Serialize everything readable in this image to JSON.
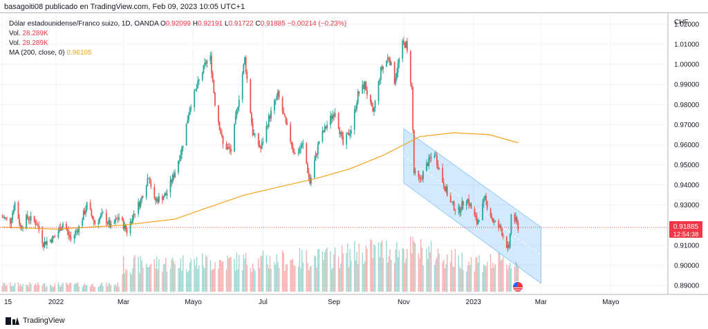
{
  "header": {
    "text": "basagoiti08 publicado en TradingView.com, Feb 09, 2023 10:05 UTC+1"
  },
  "legend": {
    "title": "Dólar estadounidense/Franco suizo, 1D, OANDA",
    "o_label": "O",
    "o": "0.92099",
    "h_label": "H",
    "h": "0.92191",
    "l_label": "L",
    "l": "0.91722",
    "c_label": "C",
    "c": "0.91885",
    "chg": "−0.00214 (−0.23%)",
    "vol1_label": "Vol.",
    "vol1": "28.289K",
    "vol2_label": "Vol.",
    "vol2": "28.289K",
    "ma_label": "MA (200, close, 0)",
    "ma": "0.96105"
  },
  "price_axis": {
    "currency": "CHF"
  },
  "price_tag": {
    "price": "0.91885",
    "countdown": "12:54:38"
  },
  "footer": {
    "brand": "TradingView"
  },
  "colors": {
    "up": "#26a69a",
    "down": "#ef5350",
    "ma": "#f7a21b",
    "channel": "#90caf9",
    "grid": "#f0f3fa"
  },
  "chart_data": {
    "type": "candlestick",
    "symbol": "USDCHF",
    "interval": "1D",
    "ylim": [
      0.8855,
      1.0255
    ],
    "y_ticks": [
      0.89,
      0.9,
      0.91,
      0.93,
      0.94,
      0.95,
      0.96,
      0.97,
      0.98,
      0.99,
      1.0,
      1.01,
      1.02
    ],
    "x_ticks": [
      "15",
      "2022",
      "Mar",
      "Mayo",
      "Jul",
      "Sep",
      "Nov",
      "2023",
      "Mar",
      "Mayo"
    ],
    "x_tick_dates": [
      "2021-11-15",
      "2022-01-01",
      "2022-03-01",
      "2022-05-01",
      "2022-07-01",
      "2022-09-01",
      "2022-11-01",
      "2023-01-01",
      "2023-03-01",
      "2023-05-01"
    ],
    "x_range": [
      "2021-11-13",
      "2023-06-20"
    ],
    "current_price": 0.91885,
    "close_path": [
      [
        "2021-11-15",
        0.924
      ],
      [
        "2021-11-22",
        0.922
      ],
      [
        "2021-11-26",
        0.931
      ],
      [
        "2021-12-01",
        0.919
      ],
      [
        "2021-12-07",
        0.924
      ],
      [
        "2021-12-15",
        0.921
      ],
      [
        "2021-12-21",
        0.911
      ],
      [
        "2021-12-31",
        0.914
      ],
      [
        "2022-01-07",
        0.921
      ],
      [
        "2022-01-14",
        0.913
      ],
      [
        "2022-01-21",
        0.919
      ],
      [
        "2022-01-28",
        0.93
      ],
      [
        "2022-02-04",
        0.921
      ],
      [
        "2022-02-11",
        0.925
      ],
      [
        "2022-02-18",
        0.919
      ],
      [
        "2022-02-25",
        0.924
      ],
      [
        "2022-03-04",
        0.917
      ],
      [
        "2022-03-10",
        0.926
      ],
      [
        "2022-03-16",
        0.932
      ],
      [
        "2022-03-23",
        0.945
      ],
      [
        "2022-03-28",
        0.932
      ],
      [
        "2022-04-07",
        0.935
      ],
      [
        "2022-04-14",
        0.945
      ],
      [
        "2022-04-21",
        0.958
      ],
      [
        "2022-04-28",
        0.979
      ],
      [
        "2022-05-05",
        0.99
      ],
      [
        "2022-05-12",
        1.001
      ],
      [
        "2022-05-16",
        1.003
      ],
      [
        "2022-05-20",
        0.981
      ],
      [
        "2022-05-27",
        0.96
      ],
      [
        "2022-06-03",
        0.957
      ],
      [
        "2022-06-10",
        0.984
      ],
      [
        "2022-06-15",
        1.003
      ],
      [
        "2022-06-22",
        0.966
      ],
      [
        "2022-06-29",
        0.958
      ],
      [
        "2022-07-06",
        0.973
      ],
      [
        "2022-07-14",
        0.985
      ],
      [
        "2022-07-21",
        0.97
      ],
      [
        "2022-07-29",
        0.955
      ],
      [
        "2022-08-05",
        0.96
      ],
      [
        "2022-08-11",
        0.941
      ],
      [
        "2022-08-19",
        0.962
      ],
      [
        "2022-08-26",
        0.97
      ],
      [
        "2022-09-02",
        0.977
      ],
      [
        "2022-09-09",
        0.96
      ],
      [
        "2022-09-16",
        0.968
      ],
      [
        "2022-09-22",
        0.985
      ],
      [
        "2022-09-28",
        0.99
      ],
      [
        "2022-10-05",
        0.975
      ],
      [
        "2022-10-12",
        0.997
      ],
      [
        "2022-10-19",
        1.004
      ],
      [
        "2022-10-24",
        0.992
      ],
      [
        "2022-10-31",
        1.01
      ],
      [
        "2022-11-03",
        1.01
      ],
      [
        "2022-11-08",
        0.988
      ],
      [
        "2022-11-10",
        0.946
      ],
      [
        "2022-11-15",
        0.942
      ],
      [
        "2022-11-22",
        0.951
      ],
      [
        "2022-11-28",
        0.956
      ],
      [
        "2022-12-05",
        0.942
      ],
      [
        "2022-12-12",
        0.931
      ],
      [
        "2022-12-19",
        0.927
      ],
      [
        "2022-12-26",
        0.934
      ],
      [
        "2023-01-04",
        0.921
      ],
      [
        "2023-01-11",
        0.933
      ],
      [
        "2023-01-18",
        0.922
      ],
      [
        "2023-01-25",
        0.918
      ],
      [
        "2023-02-01",
        0.907
      ],
      [
        "2023-02-03",
        0.925
      ],
      [
        "2023-02-07",
        0.922
      ],
      [
        "2023-02-09",
        0.919
      ]
    ],
    "ma_path": [
      [
        "2021-11-15",
        0.919
      ],
      [
        "2022-01-01",
        0.918
      ],
      [
        "2022-03-01",
        0.92
      ],
      [
        "2022-04-15",
        0.923
      ],
      [
        "2022-05-15",
        0.929
      ],
      [
        "2022-06-15",
        0.935
      ],
      [
        "2022-07-15",
        0.939
      ],
      [
        "2022-08-15",
        0.943
      ],
      [
        "2022-09-15",
        0.948
      ],
      [
        "2022-10-15",
        0.955
      ],
      [
        "2022-11-15",
        0.964
      ],
      [
        "2022-12-15",
        0.966
      ],
      [
        "2023-01-15",
        0.965
      ],
      [
        "2023-02-09",
        0.961
      ]
    ],
    "volume_path": [
      [
        "2021-11-15",
        0.12
      ],
      [
        "2022-02-25",
        0.12
      ],
      [
        "2022-03-01",
        0.45
      ],
      [
        "2022-05-01",
        0.5
      ],
      [
        "2022-07-01",
        0.52
      ],
      [
        "2022-09-01",
        0.58
      ],
      [
        "2022-10-01",
        0.7
      ],
      [
        "2022-11-10",
        0.72
      ],
      [
        "2022-12-15",
        0.55
      ],
      [
        "2023-01-15",
        0.5
      ],
      [
        "2023-02-09",
        0.48
      ]
    ],
    "channel": {
      "upper": [
        [
          "2022-11-01",
          0.968
        ],
        [
          "2023-03-01",
          0.919
        ]
      ],
      "lower": [
        [
          "2022-11-01",
          0.941
        ],
        [
          "2023-03-01",
          0.891
        ]
      ]
    }
  }
}
